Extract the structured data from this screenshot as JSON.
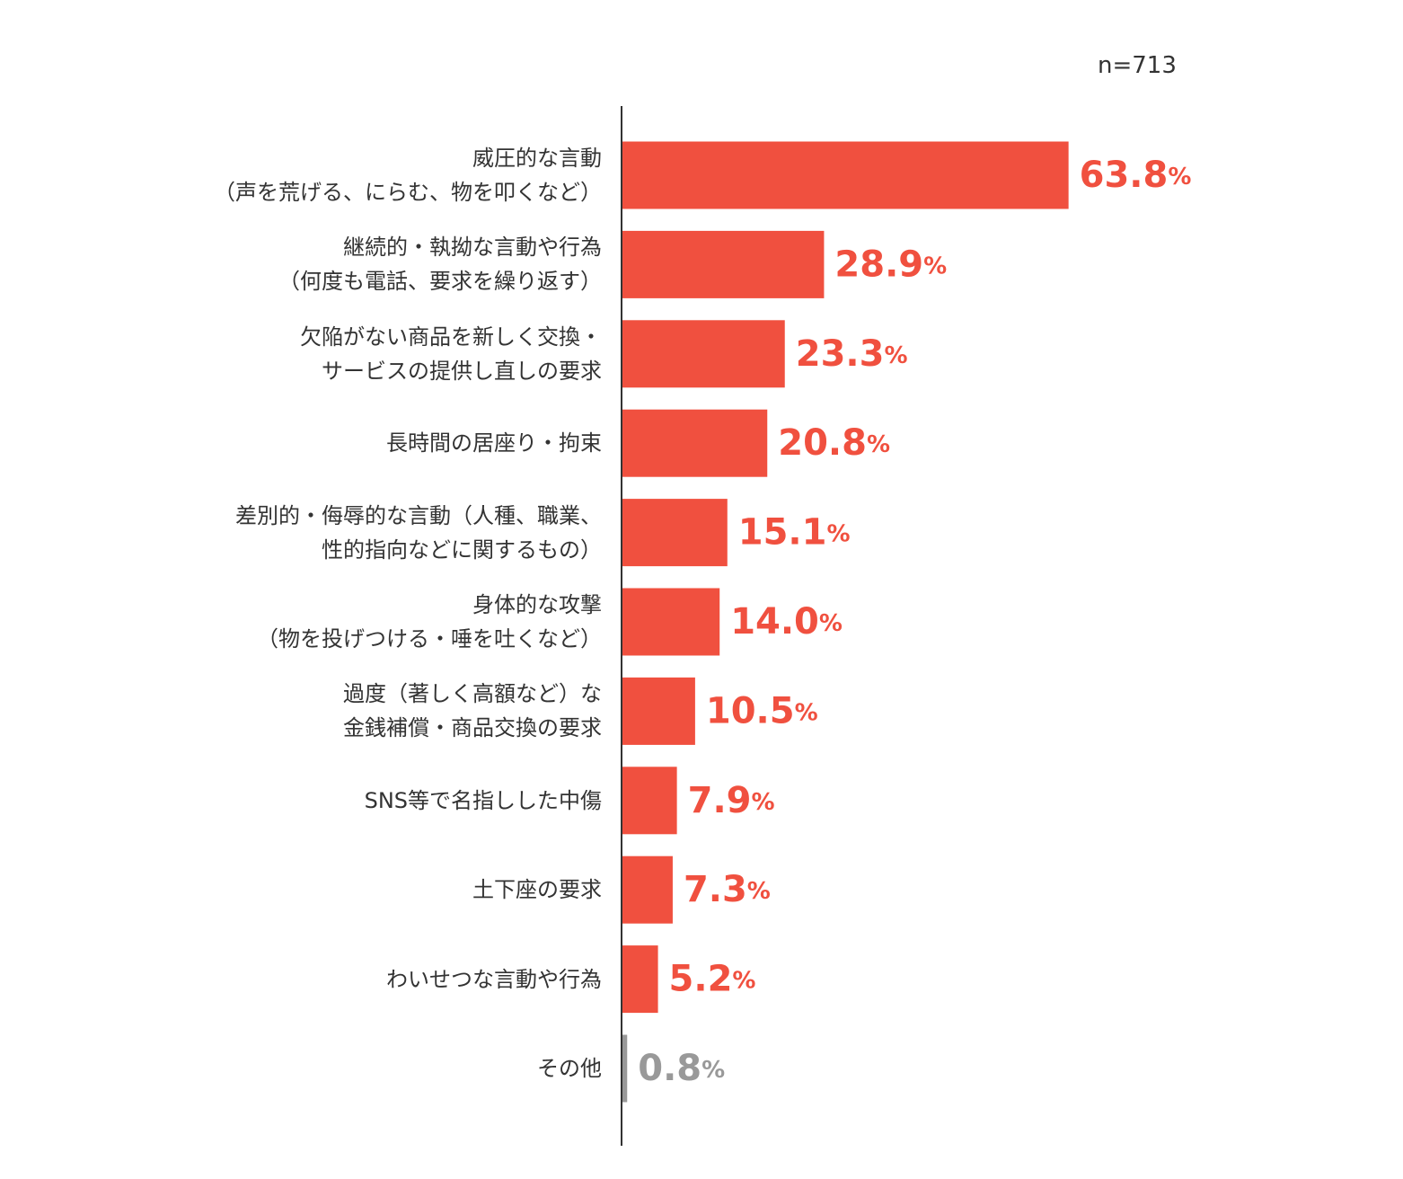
{
  "chart_data": {
    "type": "hbar",
    "annotation": "n=713",
    "categories": [
      "威圧的な言動\n（声を荒げる、にらむ、物を叩くなど）",
      "継続的・執拗な言動や行為\n（何度も電話、要求を繰り返す）",
      "欠陥がない商品を新しく交換・\nサービスの提供し直しの要求",
      "長時間の居座り・拘束",
      "差別的・侮辱的な言動（人種、職業、\n性的指向などに関するもの）",
      "身体的な攻撃\n（物を投げつける・唾を吐くなど）",
      "過度（著しく高額など）な\n金銭補償・商品交換の要求",
      "SNS等で名指しした中傷",
      "土下座の要求",
      "わいせつな言動や行為",
      "その他"
    ],
    "values": [
      63.8,
      28.9,
      23.3,
      20.8,
      15.1,
      14.0,
      10.5,
      7.9,
      7.3,
      5.2,
      0.8
    ],
    "value_labels": [
      "63.8%",
      "28.9%",
      "23.3%",
      "20.8%",
      "15.1%",
      "14.0%",
      "10.5%",
      "7.9%",
      "7.3%",
      "5.2%",
      "0.8%"
    ],
    "colors": [
      "#f0503f",
      "#f0503f",
      "#f0503f",
      "#f0503f",
      "#f0503f",
      "#f0503f",
      "#f0503f",
      "#f0503f",
      "#f0503f",
      "#f0503f",
      "#999999"
    ],
    "xlim": [
      0,
      100
    ]
  }
}
